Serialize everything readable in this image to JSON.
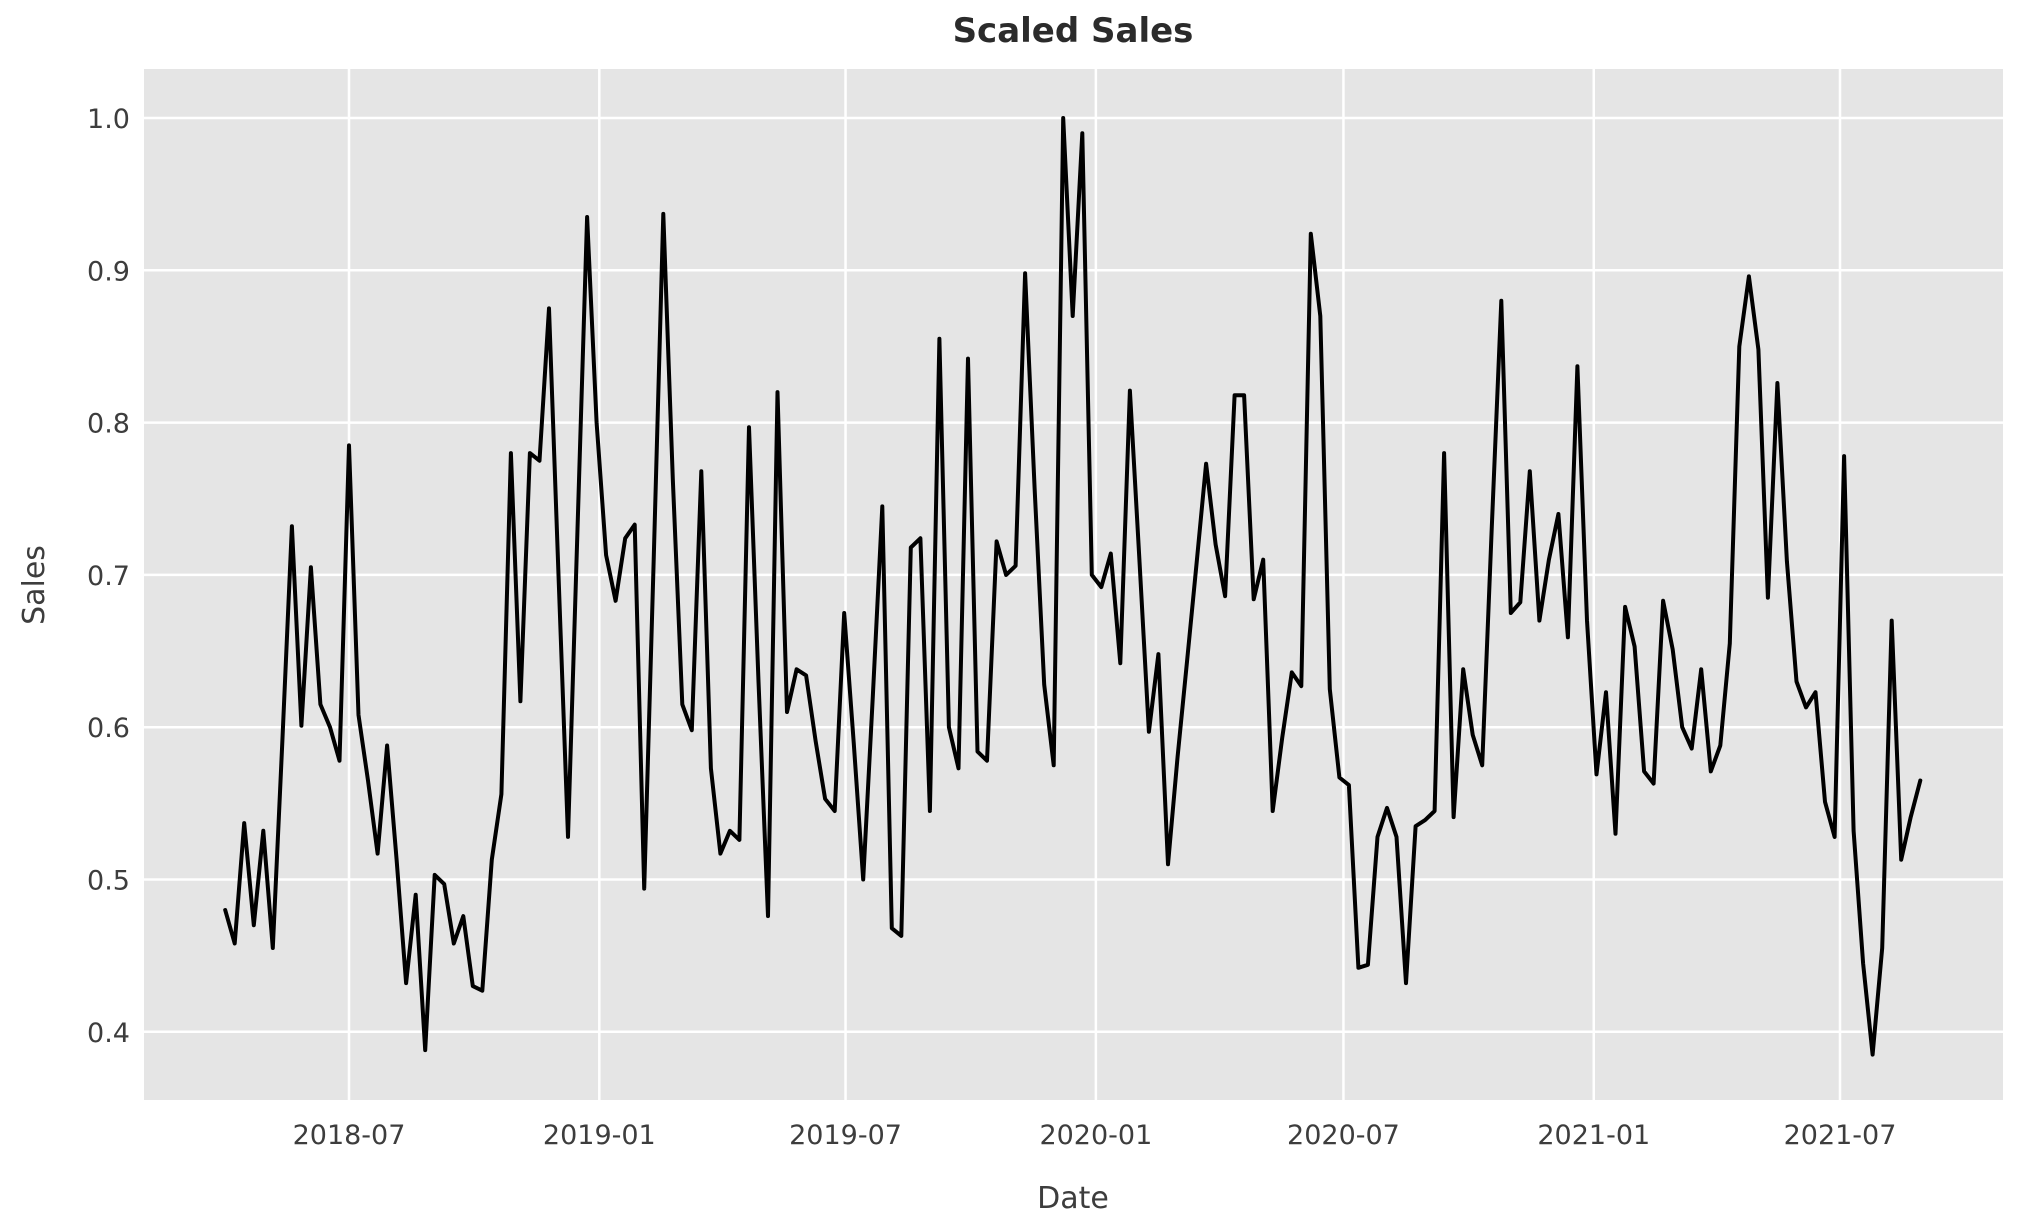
{
  "chart_data": {
    "type": "line",
    "title": "Scaled Sales",
    "xlabel": "Date",
    "ylabel": "Sales",
    "x_start_date": "2018-04-01",
    "x_interval": "weekly",
    "x_end_date": "2021-08-29",
    "n_points": 179,
    "values": [
      0.48,
      0.458,
      0.537,
      0.47,
      0.532,
      0.455,
      0.59,
      0.732,
      0.601,
      0.705,
      0.615,
      0.6,
      0.578,
      0.785,
      0.608,
      0.565,
      0.517,
      0.588,
      0.513,
      0.432,
      0.49,
      0.388,
      0.503,
      0.497,
      0.458,
      0.476,
      0.43,
      0.427,
      0.513,
      0.556,
      0.78,
      0.617,
      0.78,
      0.775,
      0.875,
      0.7,
      0.528,
      0.73,
      0.935,
      0.8,
      0.713,
      0.683,
      0.724,
      0.733,
      0.494,
      0.71,
      0.937,
      0.763,
      0.615,
      0.598,
      0.768,
      0.573,
      0.517,
      0.532,
      0.526,
      0.797,
      0.63,
      0.476,
      0.82,
      0.61,
      0.638,
      0.634,
      0.591,
      0.553,
      0.545,
      0.675,
      0.59,
      0.5,
      0.62,
      0.745,
      0.468,
      0.463,
      0.718,
      0.724,
      0.545,
      0.855,
      0.6,
      0.573,
      0.842,
      0.584,
      0.578,
      0.722,
      0.7,
      0.706,
      0.898,
      0.757,
      0.628,
      0.575,
      1.0,
      0.87,
      0.99,
      0.7,
      0.692,
      0.714,
      0.642,
      0.821,
      0.71,
      0.597,
      0.648,
      0.51,
      0.58,
      0.643,
      0.707,
      0.773,
      0.72,
      0.686,
      0.818,
      0.818,
      0.684,
      0.71,
      0.545,
      0.593,
      0.636,
      0.627,
      0.924,
      0.87,
      0.625,
      0.567,
      0.562,
      0.442,
      0.444,
      0.528,
      0.547,
      0.528,
      0.432,
      0.535,
      0.539,
      0.545,
      0.78,
      0.541,
      0.638,
      0.595,
      0.575,
      0.73,
      0.88,
      0.675,
      0.682,
      0.768,
      0.67,
      0.71,
      0.74,
      0.659,
      0.837,
      0.67,
      0.569,
      0.623,
      0.53,
      0.679,
      0.653,
      0.571,
      0.563,
      0.683,
      0.651,
      0.6,
      0.586,
      0.638,
      0.571,
      0.588,
      0.655,
      0.85,
      0.896,
      0.848,
      0.685,
      0.826,
      0.709,
      0.63,
      0.613,
      0.623,
      0.551,
      0.528,
      0.778,
      0.532,
      0.445,
      0.385,
      0.455,
      0.67,
      0.513,
      0.541,
      0.565
    ],
    "x_tick_labels": [
      "2018-07",
      "2019-01",
      "2019-07",
      "2020-01",
      "2020-07",
      "2021-01",
      "2021-07"
    ],
    "x_tick_dates": [
      "2018-07-01",
      "2019-01-01",
      "2019-07-01",
      "2020-01-01",
      "2020-07-01",
      "2021-01-01",
      "2021-07-01"
    ],
    "y_ticks": [
      0.4,
      0.5,
      0.6,
      0.7,
      0.8,
      0.9,
      1.0
    ],
    "ylim": [
      0.355,
      1.032
    ],
    "grid": "on",
    "legend": "none",
    "colors": {
      "line": "#000000",
      "plot_background": "#e5e5e5",
      "figure_background": "#ffffff",
      "gridline": "#ffffff",
      "title_text": "#2b2b2b",
      "tick_text": "#3d3d3d",
      "axis_label_text": "#3d3d3d"
    }
  }
}
